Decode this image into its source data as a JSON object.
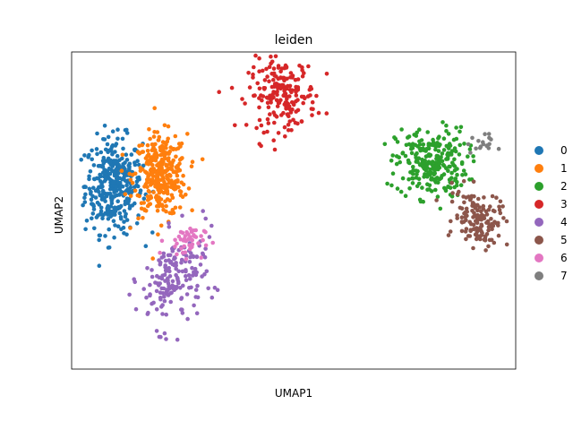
{
  "chart_data": {
    "type": "scatter",
    "title": "leiden",
    "xlabel": "UMAP1",
    "ylabel": "UMAP2",
    "xlim": [
      0,
      100
    ],
    "ylim": [
      0,
      100
    ],
    "grid": false,
    "ticks": false,
    "legend_placement": "right",
    "legend": [
      {
        "label": "0",
        "color": "#1f77b4"
      },
      {
        "label": "1",
        "color": "#ff7f0e"
      },
      {
        "label": "2",
        "color": "#2ca02c"
      },
      {
        "label": "3",
        "color": "#d62728"
      },
      {
        "label": "4",
        "color": "#9467bd"
      },
      {
        "label": "5",
        "color": "#8c564b"
      },
      {
        "label": "6",
        "color": "#e377c2"
      },
      {
        "label": "7",
        "color": "#7f7f7f"
      }
    ],
    "clusters": [
      {
        "name": "0",
        "color": "#1f77b4",
        "center": [
          9.5,
          58
        ],
        "spread": [
          3.2,
          7.5
        ],
        "count": 360
      },
      {
        "name": "1",
        "color": "#ff7f0e",
        "center": [
          20,
          61
        ],
        "spread": [
          3.0,
          6.5
        ],
        "count": 330
      },
      {
        "name": "2",
        "color": "#2ca02c",
        "center": [
          81,
          65
        ],
        "spread": [
          4.0,
          5.5
        ],
        "count": 260
      },
      {
        "name": "3",
        "color": "#d62728",
        "center": [
          47.5,
          86.5
        ],
        "spread": [
          3.8,
          5.5
        ],
        "count": 200
      },
      {
        "name": "4",
        "color": "#9467bd",
        "center": [
          23,
          28
        ],
        "spread": [
          3.5,
          7.5
        ],
        "count": 180
      },
      {
        "name": "5",
        "color": "#8c564b",
        "center": [
          91.5,
          47.5
        ],
        "spread": [
          2.8,
          4.5
        ],
        "count": 140
      },
      {
        "name": "6",
        "color": "#e377c2",
        "center": [
          25.5,
          40.5
        ],
        "spread": [
          2.2,
          2.5
        ],
        "count": 45
      },
      {
        "name": "7",
        "color": "#7f7f7f",
        "center": [
          92,
          71
        ],
        "spread": [
          1.5,
          1.5
        ],
        "count": 18
      }
    ]
  }
}
